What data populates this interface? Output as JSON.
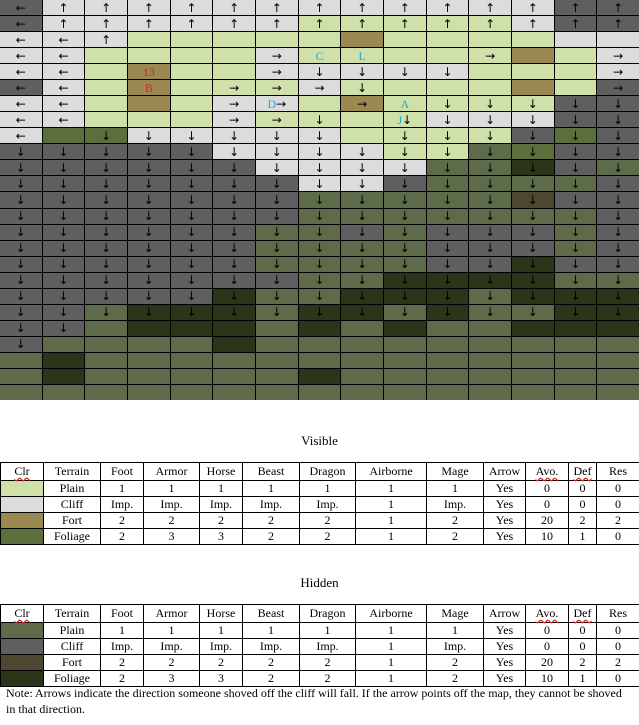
{
  "map": {
    "colors": {
      "P": "#cfe0a8",
      "C": "#dcdcdc",
      "F": "#9a8a52",
      "G": "#5b6e3c",
      "p": "#5e6b4a",
      "c": "#5f5f5f",
      "f": "#4d4630",
      "g": "#2a3519"
    },
    "rows": [
      "cCCCCCCCCCCCCcc",
      "cCCCCCCPPPPPCcc",
      "CCCPPPPPFPPPPCC",
      "CCPPPPCPPPPPFPC",
      "CCPFPPCCCCCPPPC",
      "cCPFPPPCPPPPFPc",
      "CCPFPCCPFPPPPcc",
      "CCPPPCPPPPCCCcc",
      "CGGCCCCCPPPPcGc",
      "cccccCCCCPPpGcc",
      "ccccccCCCCppgcp",
      "cccccccCCcppppc",
      "cccccccpppppfcc",
      "cccccccpppppppc",
      "ccccccppcpcccpc",
      "ccccccppppcccpc",
      "ccccccppppccgcc",
      "cccccccppggggpp",
      "cccccgppgggpggg",
      "ccpgggpggpgppgg",
      "ccpgggpgpgppggg",
      "cppppgppppppppp",
      "pgppppppppppppp",
      "pgpppppgppppppp",
      "ppppppppppppppp"
    ],
    "arrows": [
      "←↑↑↑↑↑↑↑↑↑↑↑↑↑↑",
      "←↑↑↑↑↑↑↑↑↑↑↑↑↑↑",
      "←←↑            →",
      "←←    →    →  →",
      "←←    →↓↓↓↓   →",
      "←←   →→→↓     →",
      "←←   →→ → ↓↓↓↓↓",
      "←←   →→↓ ↓↓↓↓↓↓",
      "← ↓↓↓↓↓↓ ↓↓↓↓↓↓",
      "↓↓↓↓↓↓↓↓↓↓↓↓↓↓↓",
      "↓↓↓↓↓↓↓↓↓↓↓↓↓↓↓",
      "↓↓↓↓↓↓↓↓↓↓↓↓↓↓↓",
      "↓↓↓↓↓↓↓↓↓↓↓↓↓↓↓",
      "↓↓↓↓↓↓↓↓↓↓↓↓↓↓↓",
      "↓↓↓↓↓↓↓↓↓↓↓↓↓↓↓",
      "↓↓↓↓↓↓↓↓↓↓↓↓↓↓↓",
      "↓↓↓↓↓↓↓↓↓↓↓↓↓↓↓",
      "↓↓↓↓↓↓↓↓↓↓↓↓↓↓↓",
      "↓↓↓↓↓↓↓↓↓↓↓↓↓↓↓",
      "↓↓↓↓↓↓↓↓↓↓↓↓↓↓↓",
      "↓↓             ",
      "↓              ",
      "               ",
      "               ",
      "               "
    ],
    "labels": [
      {
        "row": 3,
        "col": 7,
        "text": "C",
        "color": "#27a7d8"
      },
      {
        "row": 3,
        "col": 8,
        "text": "L",
        "color": "#27a7d8"
      },
      {
        "row": 4,
        "col": 3,
        "text": "13",
        "color": "#d81e1e"
      },
      {
        "row": 5,
        "col": 3,
        "text": "B",
        "color": "#d81e1e"
      },
      {
        "row": 6,
        "col": 6,
        "text": "D",
        "color": "#27a7d8"
      },
      {
        "row": 6,
        "col": 9,
        "text": "A",
        "color": "#27a7d8"
      },
      {
        "row": 7,
        "col": 9,
        "text": "J",
        "color": "#27a7d8"
      }
    ]
  },
  "headers": [
    "Clr",
    "Terrain",
    "Foot",
    "Armor",
    "Horse",
    "Beast",
    "Dragon",
    "Airborne",
    "Mage",
    "Arrow",
    "Avo.",
    "Def",
    "Res"
  ],
  "visible": {
    "title": "Visible",
    "rows": [
      {
        "swatch": "#cfe0a8",
        "cells": [
          "Plain",
          "1",
          "1",
          "1",
          "1",
          "1",
          "1",
          "1",
          "Yes",
          "0",
          "0",
          "0"
        ]
      },
      {
        "swatch": "#dcdcdc",
        "cells": [
          "Cliff",
          "Imp.",
          "Imp.",
          "Imp.",
          "Imp.",
          "Imp.",
          "1",
          "Imp.",
          "Yes",
          "0",
          "0",
          "0"
        ]
      },
      {
        "swatch": "#9a8a52",
        "cells": [
          "Fort",
          "2",
          "2",
          "2",
          "2",
          "2",
          "1",
          "2",
          "Yes",
          "20",
          "2",
          "2"
        ]
      },
      {
        "swatch": "#5b6e3c",
        "cells": [
          "Foliage",
          "2",
          "3",
          "3",
          "2",
          "2",
          "1",
          "2",
          "Yes",
          "10",
          "1",
          "0"
        ]
      }
    ]
  },
  "hidden": {
    "title": "Hidden",
    "rows": [
      {
        "swatch": "#5e6b4a",
        "cells": [
          "Plain",
          "1",
          "1",
          "1",
          "1",
          "1",
          "1",
          "1",
          "Yes",
          "0",
          "0",
          "0"
        ]
      },
      {
        "swatch": "#5f5f5f",
        "cells": [
          "Cliff",
          "Imp.",
          "Imp.",
          "Imp.",
          "Imp.",
          "Imp.",
          "1",
          "Imp.",
          "Yes",
          "0",
          "0",
          "0"
        ]
      },
      {
        "swatch": "#4d4630",
        "cells": [
          "Fort",
          "2",
          "2",
          "2",
          "2",
          "2",
          "1",
          "2",
          "Yes",
          "20",
          "2",
          "2"
        ]
      },
      {
        "swatch": "#2a3519",
        "cells": [
          "Foliage",
          "2",
          "3",
          "3",
          "2",
          "2",
          "1",
          "2",
          "Yes",
          "10",
          "1",
          "0"
        ]
      }
    ]
  },
  "note": "Note: Arrows indicate the direction someone shoved off the cliff will fall. If the arrow points off the map, they cannot be shoved in that direction."
}
